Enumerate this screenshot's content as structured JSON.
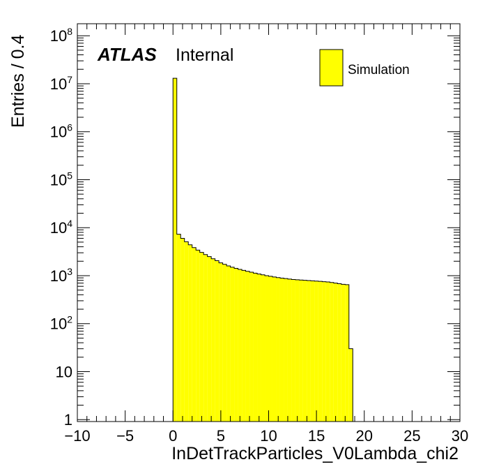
{
  "chart_data": {
    "type": "bar",
    "xlabel": "InDetTrackParticles_V0Lambda_chi2",
    "ylabel": "Entries / 0.4",
    "xlim": [
      -10,
      30
    ],
    "ylim_log10": [
      -0.04,
      8.25
    ],
    "yscale": "log",
    "bin_width": 0.4,
    "x_ticks": [
      "−10",
      "−5",
      "0",
      "5",
      "10",
      "15",
      "20",
      "25",
      "30"
    ],
    "x_tick_values": [
      -10,
      -5,
      0,
      5,
      10,
      15,
      20,
      25,
      30
    ],
    "y_ticks": [
      {
        "v": 1,
        "base": "1",
        "exp": ""
      },
      {
        "v": 10,
        "base": "10",
        "exp": ""
      },
      {
        "v": 100,
        "base": "10",
        "exp": "2"
      },
      {
        "v": 1000,
        "base": "10",
        "exp": "3"
      },
      {
        "v": 10000,
        "base": "10",
        "exp": "4"
      },
      {
        "v": 100000,
        "base": "10",
        "exp": "5"
      },
      {
        "v": 1000000,
        "base": "10",
        "exp": "6"
      },
      {
        "v": 10000000,
        "base": "10",
        "exp": "7"
      },
      {
        "v": 100000000,
        "base": "10",
        "exp": "8"
      }
    ],
    "bins_x": [
      0.0,
      0.4,
      0.8,
      1.2,
      1.6,
      2.0,
      2.4,
      2.8,
      3.2,
      3.6,
      4.0,
      4.4,
      4.8,
      5.2,
      5.6,
      6.0,
      6.4,
      6.8,
      7.2,
      7.6,
      8.0,
      8.4,
      8.8,
      9.2,
      9.6,
      10.0,
      10.4,
      10.8,
      11.2,
      11.6,
      12.0,
      12.4,
      12.8,
      13.2,
      13.6,
      14.0,
      14.4,
      14.8,
      15.2,
      15.6,
      16.0,
      16.4,
      16.8,
      17.2,
      17.6,
      18.0,
      18.4
    ],
    "values": [
      13000000,
      7300,
      6000,
      5100,
      4400,
      3850,
      3400,
      3050,
      2750,
      2500,
      2250,
      2050,
      1850,
      1720,
      1600,
      1500,
      1420,
      1350,
      1290,
      1230,
      1180,
      1130,
      1080,
      1040,
      1000,
      970,
      940,
      910,
      890,
      870,
      850,
      830,
      820,
      810,
      800,
      790,
      780,
      770,
      760,
      750,
      740,
      720,
      700,
      680,
      660,
      650,
      30
    ],
    "series": [
      {
        "name": "Simulation",
        "color": "#ffff00"
      }
    ],
    "legend_position": "top-right",
    "annotations": {
      "experiment": "ATLAS",
      "status": "Internal"
    }
  }
}
